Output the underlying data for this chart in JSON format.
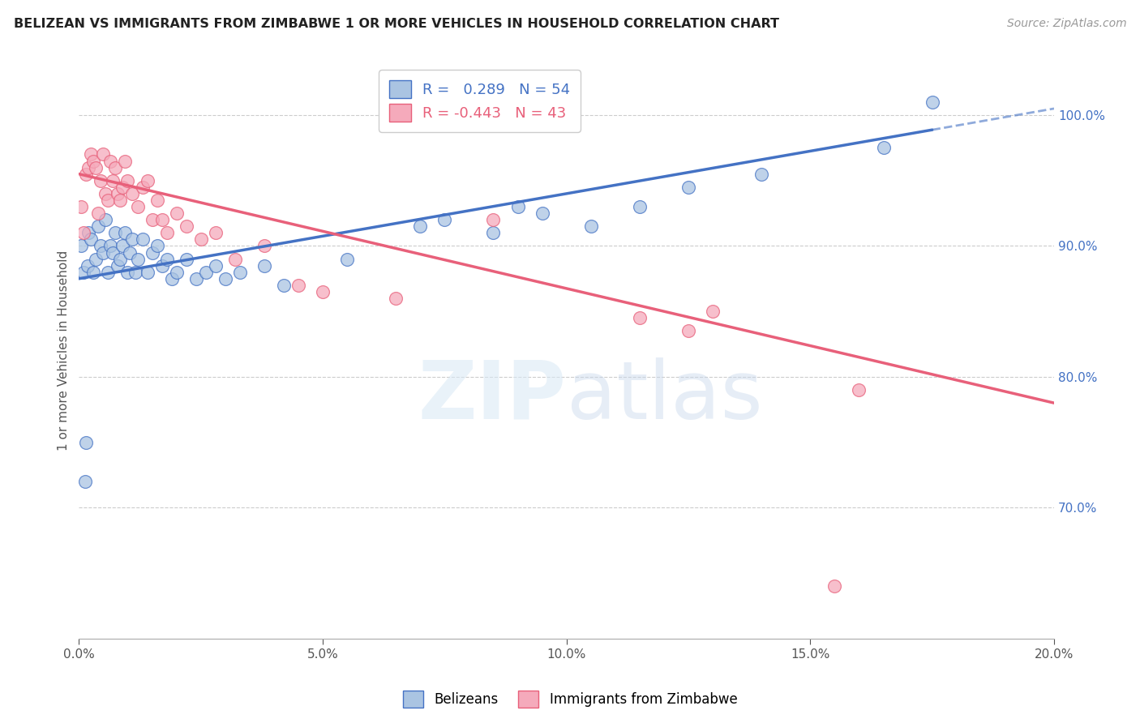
{
  "title": "BELIZEAN VS IMMIGRANTS FROM ZIMBABWE 1 OR MORE VEHICLES IN HOUSEHOLD CORRELATION CHART",
  "source": "Source: ZipAtlas.com",
  "ylabel": "1 or more Vehicles in Household",
  "legend_labels": [
    "Belizeans",
    "Immigrants from Zimbabwe"
  ],
  "blue_R": 0.289,
  "blue_N": 54,
  "pink_R": -0.443,
  "pink_N": 43,
  "xlim": [
    0.0,
    20.0
  ],
  "ylim": [
    60.0,
    104.0
  ],
  "blue_color": "#aac4e2",
  "pink_color": "#f5aabb",
  "blue_line_color": "#4472c4",
  "pink_line_color": "#e8607a",
  "blue_line_x0": 0.0,
  "blue_line_y0": 87.5,
  "blue_line_x1": 20.0,
  "blue_line_y1": 100.5,
  "blue_dash_start_x": 17.5,
  "pink_line_x0": 0.0,
  "pink_line_y0": 95.5,
  "pink_line_x1": 20.0,
  "pink_line_y1": 78.0,
  "blue_scatter_x": [
    0.05,
    0.1,
    0.12,
    0.15,
    0.18,
    0.2,
    0.25,
    0.3,
    0.35,
    0.4,
    0.45,
    0.5,
    0.55,
    0.6,
    0.65,
    0.7,
    0.75,
    0.8,
    0.85,
    0.9,
    0.95,
    1.0,
    1.05,
    1.1,
    1.15,
    1.2,
    1.3,
    1.4,
    1.5,
    1.6,
    1.7,
    1.8,
    1.9,
    2.0,
    2.2,
    2.4,
    2.6,
    2.8,
    3.0,
    3.3,
    3.8,
    4.2,
    5.5,
    7.0,
    7.5,
    8.5,
    9.0,
    9.5,
    10.5,
    11.5,
    12.5,
    14.0,
    16.5,
    17.5
  ],
  "blue_scatter_y": [
    90.0,
    88.0,
    72.0,
    75.0,
    88.5,
    91.0,
    90.5,
    88.0,
    89.0,
    91.5,
    90.0,
    89.5,
    92.0,
    88.0,
    90.0,
    89.5,
    91.0,
    88.5,
    89.0,
    90.0,
    91.0,
    88.0,
    89.5,
    90.5,
    88.0,
    89.0,
    90.5,
    88.0,
    89.5,
    90.0,
    88.5,
    89.0,
    87.5,
    88.0,
    89.0,
    87.5,
    88.0,
    88.5,
    87.5,
    88.0,
    88.5,
    87.0,
    89.0,
    91.5,
    92.0,
    91.0,
    93.0,
    92.5,
    91.5,
    93.0,
    94.5,
    95.5,
    97.5,
    101.0
  ],
  "pink_scatter_x": [
    0.05,
    0.1,
    0.15,
    0.2,
    0.25,
    0.3,
    0.35,
    0.4,
    0.45,
    0.5,
    0.55,
    0.6,
    0.65,
    0.7,
    0.75,
    0.8,
    0.85,
    0.9,
    0.95,
    1.0,
    1.1,
    1.2,
    1.3,
    1.4,
    1.5,
    1.6,
    1.7,
    1.8,
    2.0,
    2.2,
    2.5,
    2.8,
    3.2,
    3.8,
    4.5,
    5.0,
    6.5,
    8.5,
    11.5,
    12.5,
    13.0,
    15.5,
    16.0
  ],
  "pink_scatter_y": [
    93.0,
    91.0,
    95.5,
    96.0,
    97.0,
    96.5,
    96.0,
    92.5,
    95.0,
    97.0,
    94.0,
    93.5,
    96.5,
    95.0,
    96.0,
    94.0,
    93.5,
    94.5,
    96.5,
    95.0,
    94.0,
    93.0,
    94.5,
    95.0,
    92.0,
    93.5,
    92.0,
    91.0,
    92.5,
    91.5,
    90.5,
    91.0,
    89.0,
    90.0,
    87.0,
    86.5,
    86.0,
    92.0,
    84.5,
    83.5,
    85.0,
    64.0,
    79.0
  ],
  "watermark_zip": "ZIP",
  "watermark_atlas": "atlas",
  "background_color": "#ffffff"
}
